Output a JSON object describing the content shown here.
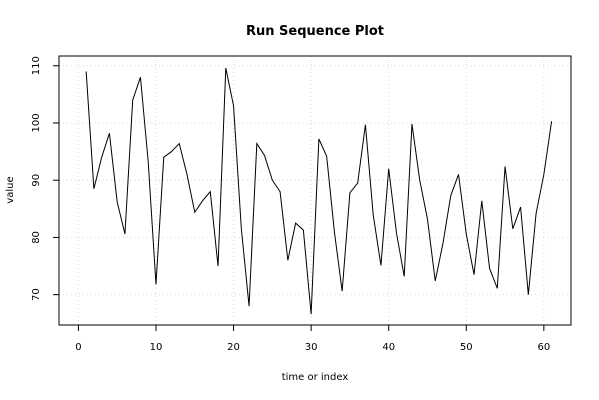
{
  "chart_data": {
    "type": "line",
    "title": "Run Sequence Plot",
    "xlabel": "time or index",
    "ylabel": "value",
    "xlim": [
      -2.5,
      63.5
    ],
    "ylim": [
      64.7,
      111.7
    ],
    "x_ticks": [
      0,
      10,
      20,
      30,
      40,
      50,
      60
    ],
    "y_ticks": [
      70,
      80,
      90,
      100,
      110
    ],
    "grid": true,
    "series_color": "#000000",
    "grid_color": "#d9d9d9",
    "x": [
      1,
      2,
      3,
      4,
      5,
      6,
      7,
      8,
      9,
      10,
      11,
      12,
      13,
      14,
      15,
      16,
      17,
      18,
      19,
      20,
      21,
      22,
      23,
      24,
      25,
      26,
      27,
      28,
      29,
      30,
      31,
      32,
      33,
      34,
      35,
      36,
      37,
      38,
      39,
      40,
      41,
      42,
      43,
      44,
      45,
      46,
      47,
      48,
      49,
      50,
      51,
      52,
      53,
      54,
      55,
      56,
      57,
      58,
      59,
      60,
      61
    ],
    "values": [
      109.0,
      88.5,
      94.0,
      98.2,
      86.2,
      80.6,
      104.0,
      108.0,
      93.2,
      71.8,
      94.0,
      95.0,
      96.4,
      91.0,
      84.4,
      86.4,
      88.0,
      75.0,
      109.6,
      103.0,
      81.6,
      68.0,
      96.4,
      94.3,
      90.0,
      88.0,
      76.0,
      82.5,
      81.3,
      66.6,
      97.2,
      94.2,
      81.0,
      70.6,
      87.8,
      89.5,
      99.7,
      84.0,
      75.1,
      92.0,
      80.8,
      73.2,
      99.8,
      90.0,
      83.2,
      72.4,
      79.0,
      87.3,
      91.0,
      80.6,
      73.5,
      86.4,
      74.6,
      71.1,
      92.4,
      81.5,
      85.3,
      70.0,
      84.2,
      91.0,
      100.3
    ]
  }
}
